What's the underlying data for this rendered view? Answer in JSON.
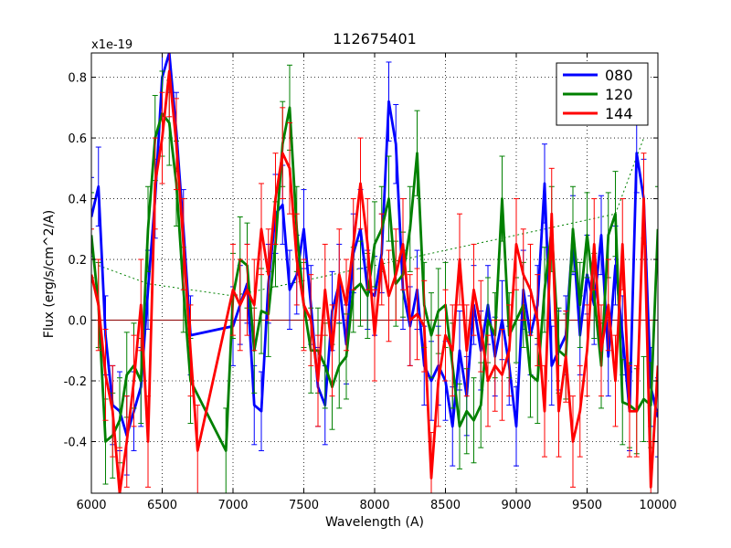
{
  "chart_data": {
    "type": "line",
    "title": "112675401",
    "xlabel": "Wavelength (A)",
    "ylabel": "Flux (erg/s/cm^2/A)",
    "y_offset_label": "x1e-19",
    "xlim": [
      6000,
      10000
    ],
    "ylim": [
      -0.57,
      0.88
    ],
    "x_ticks": [
      6000,
      6500,
      7000,
      7500,
      8000,
      8500,
      9000,
      9500,
      10000
    ],
    "y_ticks": [
      -0.4,
      -0.2,
      0.0,
      0.2,
      0.4,
      0.6,
      0.8
    ],
    "y_tick_labels": [
      "-0.4",
      "-0.2",
      "0.0",
      "0.2",
      "0.4",
      "0.6",
      "0.8"
    ],
    "grid": true,
    "legend_position": "top-right",
    "series": [
      {
        "name": "080",
        "color": "#0000ff",
        "x": [
          6000,
          6050,
          6100,
          6150,
          6200,
          6250,
          6300,
          6350,
          6400,
          6450,
          6500,
          6550,
          6600,
          6650,
          6700,
          7000,
          7050,
          7100,
          7150,
          7200,
          7250,
          7300,
          7350,
          7400,
          7450,
          7500,
          7550,
          7600,
          7650,
          7700,
          7750,
          7800,
          7850,
          7900,
          7950,
          8000,
          8050,
          8100,
          8150,
          8200,
          8250,
          8300,
          8350,
          8400,
          8450,
          8500,
          8550,
          8600,
          8650,
          8700,
          8750,
          8800,
          8850,
          8900,
          8950,
          9000,
          9050,
          9100,
          9150,
          9200,
          9250,
          9300,
          9350,
          9400,
          9450,
          9500,
          9550,
          9600,
          9650,
          9700,
          9750,
          9800,
          9850,
          9900,
          9950,
          10000
        ],
        "y": [
          0.34,
          0.44,
          -0.05,
          -0.28,
          -0.3,
          -0.38,
          -0.3,
          -0.22,
          0.1,
          0.4,
          0.8,
          0.88,
          0.62,
          0.3,
          -0.05,
          -0.02,
          0.05,
          0.12,
          -0.28,
          -0.3,
          0.12,
          0.35,
          0.38,
          0.1,
          0.15,
          0.3,
          0.05,
          -0.22,
          -0.28,
          0.03,
          0.12,
          -0.08,
          0.22,
          0.3,
          0.1,
          0.08,
          0.22,
          0.72,
          0.58,
          0.1,
          -0.02,
          0.1,
          -0.15,
          -0.2,
          -0.15,
          -0.2,
          -0.35,
          -0.1,
          -0.25,
          0.05,
          -0.1,
          0.05,
          -0.12,
          0.0,
          -0.15,
          -0.35,
          0.1,
          -0.05,
          0.05,
          0.45,
          -0.15,
          -0.1,
          -0.05,
          0.28,
          -0.05,
          0.15,
          0.05,
          0.28,
          -0.12,
          0.18,
          -0.05,
          -0.3,
          0.55,
          0.4,
          -0.22,
          -0.32
        ],
        "err": 0.13
      },
      {
        "name": "120",
        "color": "#008000",
        "x": [
          6000,
          6050,
          6100,
          6150,
          6200,
          6250,
          6300,
          6350,
          6400,
          6450,
          6500,
          6550,
          6600,
          6650,
          6700,
          6950,
          7000,
          7050,
          7100,
          7150,
          7200,
          7250,
          7300,
          7350,
          7400,
          7450,
          7500,
          7550,
          7600,
          7650,
          7700,
          7750,
          7800,
          7850,
          7900,
          7950,
          8000,
          8050,
          8100,
          8150,
          8200,
          8250,
          8300,
          8350,
          8400,
          8450,
          8500,
          8550,
          8600,
          8650,
          8700,
          8750,
          8800,
          8850,
          8900,
          8950,
          9000,
          9050,
          9100,
          9150,
          9200,
          9250,
          9300,
          9350,
          9400,
          9450,
          9500,
          9550,
          9600,
          9650,
          9700,
          9750,
          9800,
          9850,
          9900,
          9950,
          10000
        ],
        "y": [
          0.28,
          0.05,
          -0.4,
          -0.38,
          -0.33,
          -0.18,
          -0.15,
          -0.2,
          0.3,
          0.6,
          0.68,
          0.65,
          0.45,
          0.1,
          -0.2,
          -0.43,
          0.08,
          0.2,
          0.18,
          -0.1,
          0.03,
          0.02,
          0.25,
          0.58,
          0.7,
          0.3,
          0.05,
          -0.1,
          -0.1,
          -0.15,
          -0.22,
          -0.15,
          -0.12,
          0.1,
          0.12,
          0.08,
          0.25,
          0.3,
          0.4,
          0.12,
          0.15,
          0.3,
          0.55,
          0.05,
          -0.05,
          0.03,
          0.05,
          -0.15,
          -0.35,
          -0.3,
          -0.33,
          -0.28,
          0.0,
          -0.05,
          0.4,
          -0.05,
          0.0,
          0.05,
          -0.18,
          -0.2,
          0.1,
          0.3,
          -0.1,
          -0.12,
          0.3,
          0.05,
          0.28,
          0.08,
          -0.15,
          0.28,
          0.35,
          -0.27,
          -0.28,
          -0.3,
          -0.26,
          -0.28,
          0.3
        ],
        "err": 0.14
      },
      {
        "name": "144",
        "color": "#ff0000",
        "x": [
          6000,
          6050,
          6100,
          6150,
          6200,
          6250,
          6300,
          6350,
          6400,
          6450,
          6500,
          6550,
          6600,
          6650,
          6700,
          6750,
          7000,
          7050,
          7100,
          7150,
          7200,
          7250,
          7300,
          7350,
          7400,
          7450,
          7500,
          7550,
          7600,
          7650,
          7700,
          7750,
          7800,
          7850,
          7900,
          7950,
          8000,
          8050,
          8100,
          8150,
          8200,
          8250,
          8300,
          8350,
          8400,
          8450,
          8500,
          8550,
          8600,
          8650,
          8700,
          8750,
          8800,
          8850,
          8900,
          8950,
          9000,
          9050,
          9100,
          9150,
          9200,
          9250,
          9300,
          9350,
          9400,
          9450,
          9500,
          9550,
          9600,
          9650,
          9700,
          9750,
          9800,
          9850,
          9900,
          9950,
          10000
        ],
        "y": [
          0.15,
          0.05,
          -0.18,
          -0.3,
          -0.57,
          -0.4,
          -0.2,
          0.05,
          -0.4,
          0.45,
          0.6,
          0.82,
          0.58,
          0.25,
          -0.1,
          -0.43,
          0.1,
          0.05,
          0.1,
          0.05,
          0.3,
          0.15,
          0.4,
          0.55,
          0.5,
          0.2,
          0.05,
          0.0,
          -0.2,
          0.1,
          -0.1,
          0.15,
          0.05,
          0.25,
          0.45,
          0.25,
          -0.05,
          0.2,
          0.08,
          0.15,
          0.25,
          0.0,
          0.02,
          -0.02,
          -0.52,
          -0.2,
          -0.05,
          -0.1,
          0.2,
          -0.1,
          0.1,
          -0.02,
          -0.2,
          -0.15,
          -0.18,
          -0.1,
          0.25,
          0.15,
          0.1,
          0.0,
          -0.3,
          0.35,
          -0.3,
          -0.12,
          -0.4,
          -0.3,
          -0.1,
          0.25,
          -0.1,
          0.05,
          -0.2,
          0.25,
          -0.3,
          -0.3,
          0.4,
          -0.55,
          -0.15
        ],
        "err": 0.15
      }
    ],
    "dotted_connector": {
      "color": "#008000",
      "points": [
        [
          6050,
          0.18
        ],
        [
          6400,
          0.12
        ],
        [
          7000,
          0.08
        ],
        [
          9700,
          0.35
        ],
        [
          9900,
          0.6
        ]
      ]
    },
    "zero_line_color": "#8b0000"
  }
}
